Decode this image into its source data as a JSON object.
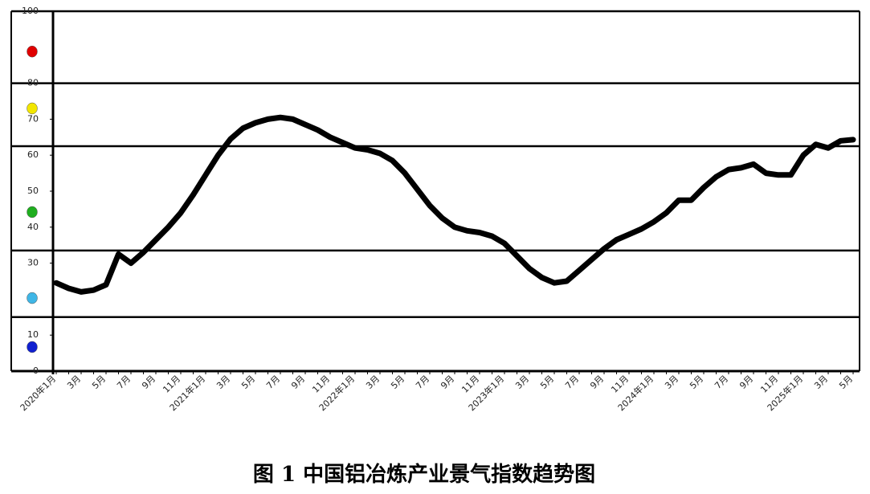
{
  "chart_data": {
    "type": "line",
    "title": "图 1  中国铝冶炼产业景气指数趋势图",
    "categories": [
      "2020年1月",
      null,
      "3月",
      null,
      "5月",
      null,
      "7月",
      null,
      "9月",
      null,
      "11月",
      null,
      "2021年1月",
      null,
      "3月",
      null,
      "5月",
      null,
      "7月",
      null,
      "9月",
      null,
      "11月",
      null,
      "2022年1月",
      null,
      "3月",
      null,
      "5月",
      null,
      "7月",
      null,
      "9月",
      null,
      "11月",
      null,
      "2023年1月",
      null,
      "3月",
      null,
      "5月",
      null,
      "7月",
      null,
      "9月",
      null,
      "11月",
      null,
      "2024年1月",
      null,
      "3月",
      null,
      "5月",
      null,
      "7月",
      null,
      "9月",
      null,
      "11月",
      null,
      "2025年1月",
      null,
      "3月",
      null,
      "5月"
    ],
    "series": [
      {
        "color": "#000000",
        "values": [
          24.5,
          23,
          22,
          22.5,
          24,
          32.5,
          30,
          33,
          36.5,
          40,
          44,
          49,
          54.5,
          60,
          64.5,
          67.5,
          69,
          70,
          70.5,
          70,
          68.5,
          67,
          65,
          63.5,
          62,
          61.5,
          60.5,
          58.5,
          55,
          50.5,
          46,
          42.5,
          40,
          39,
          38.5,
          37.5,
          35.5,
          32,
          28.5,
          26,
          24.5,
          25,
          28,
          31,
          34,
          36.5,
          38,
          39.5,
          41.5,
          44,
          47.5,
          47.5,
          51,
          54,
          56,
          56.5,
          57.5,
          55,
          54.5,
          54.5,
          60,
          63,
          62,
          64,
          64.3
        ]
      }
    ],
    "ylim": [
      0,
      100
    ],
    "yticks": [
      0,
      10,
      30,
      40,
      50,
      60,
      70,
      80,
      100
    ],
    "zone_lines": [
      15,
      33.5,
      62.5,
      80,
      100
    ],
    "zone_markers": [
      {
        "value": 88.8,
        "color": "#e00000"
      },
      {
        "value": 73,
        "color": "#f2e600"
      },
      {
        "value": 44.2,
        "color": "#1fae1f"
      },
      {
        "value": 20.3,
        "color": "#3fb6e6"
      },
      {
        "value": 6.7,
        "color": "#1020d0"
      }
    ]
  }
}
